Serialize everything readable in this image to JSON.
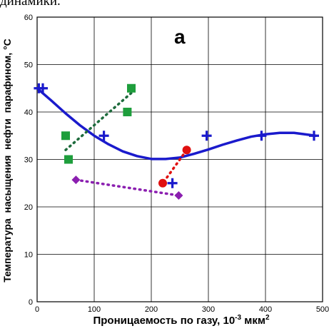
{
  "top_text": "динамики.",
  "chart_data": {
    "type": "scatter",
    "panel_label": "а",
    "title": "",
    "xlabel": "Проницаемость по газу,  10",
    "xlabel_exp": "-3",
    "xlabel_unit": " мкм",
    "xlabel_unit_exp": "2",
    "ylabel": "Температура  насыщения  нефти  парафином, ",
    "ylabel_unit": "°С",
    "xlim": [
      0,
      500
    ],
    "ylim": [
      0,
      60
    ],
    "x_ticks": [
      "0",
      "100",
      "200",
      "300",
      "400",
      "500"
    ],
    "y_ticks": [
      "0",
      "10",
      "20",
      "30",
      "40",
      "50",
      "60"
    ],
    "grid": true,
    "colors": {
      "blue": "#1a1acc",
      "green": "#1e9e3c",
      "dark_green": "#1d6b3c",
      "red": "#e01010",
      "purple": "#8b1fb0"
    },
    "series": [
      {
        "marker": "plus",
        "color": "#1a1acc",
        "points": [
          [
            3,
            45
          ],
          [
            10,
            45
          ],
          [
            117,
            35
          ],
          [
            237,
            25
          ],
          [
            297,
            35
          ],
          [
            393,
            35
          ],
          [
            485,
            35
          ]
        ],
        "trend": [
          [
            0,
            45
          ],
          [
            25,
            42.4
          ],
          [
            50,
            39.7
          ],
          [
            75,
            37.2
          ],
          [
            100,
            35
          ],
          [
            125,
            33.2
          ],
          [
            150,
            31.7
          ],
          [
            175,
            30.7
          ],
          [
            200,
            30.1
          ],
          [
            225,
            30.1
          ],
          [
            250,
            30.4
          ],
          [
            275,
            31.2
          ],
          [
            300,
            32.1
          ],
          [
            325,
            33.1
          ],
          [
            350,
            34
          ],
          [
            375,
            34.8
          ],
          [
            400,
            35.3
          ],
          [
            425,
            35.6
          ],
          [
            450,
            35.6
          ],
          [
            475,
            35.2
          ],
          [
            488,
            35
          ]
        ],
        "trend_style": "solid"
      },
      {
        "marker": "square",
        "color": "#1e9e3c",
        "points": [
          [
            50,
            35
          ],
          [
            55,
            30
          ],
          [
            158,
            40
          ],
          [
            165,
            45
          ]
        ],
        "trend": [
          [
            50,
            32
          ],
          [
            165,
            44
          ]
        ],
        "trend_style": "dotted",
        "trend_color": "#1d6b3c"
      },
      {
        "marker": "circle",
        "color": "#e01010",
        "points": [
          [
            220,
            25
          ],
          [
            262,
            32
          ]
        ],
        "trend": [
          [
            222,
            25.3
          ],
          [
            262,
            32
          ]
        ],
        "trend_style": "dotted"
      },
      {
        "marker": "diamond",
        "color": "#8b1fb0",
        "points": [
          [
            68,
            25.7
          ],
          [
            248,
            22.4
          ]
        ],
        "trend": [
          [
            68,
            25.7
          ],
          [
            248,
            22.4
          ]
        ],
        "trend_style": "dotted"
      }
    ]
  }
}
